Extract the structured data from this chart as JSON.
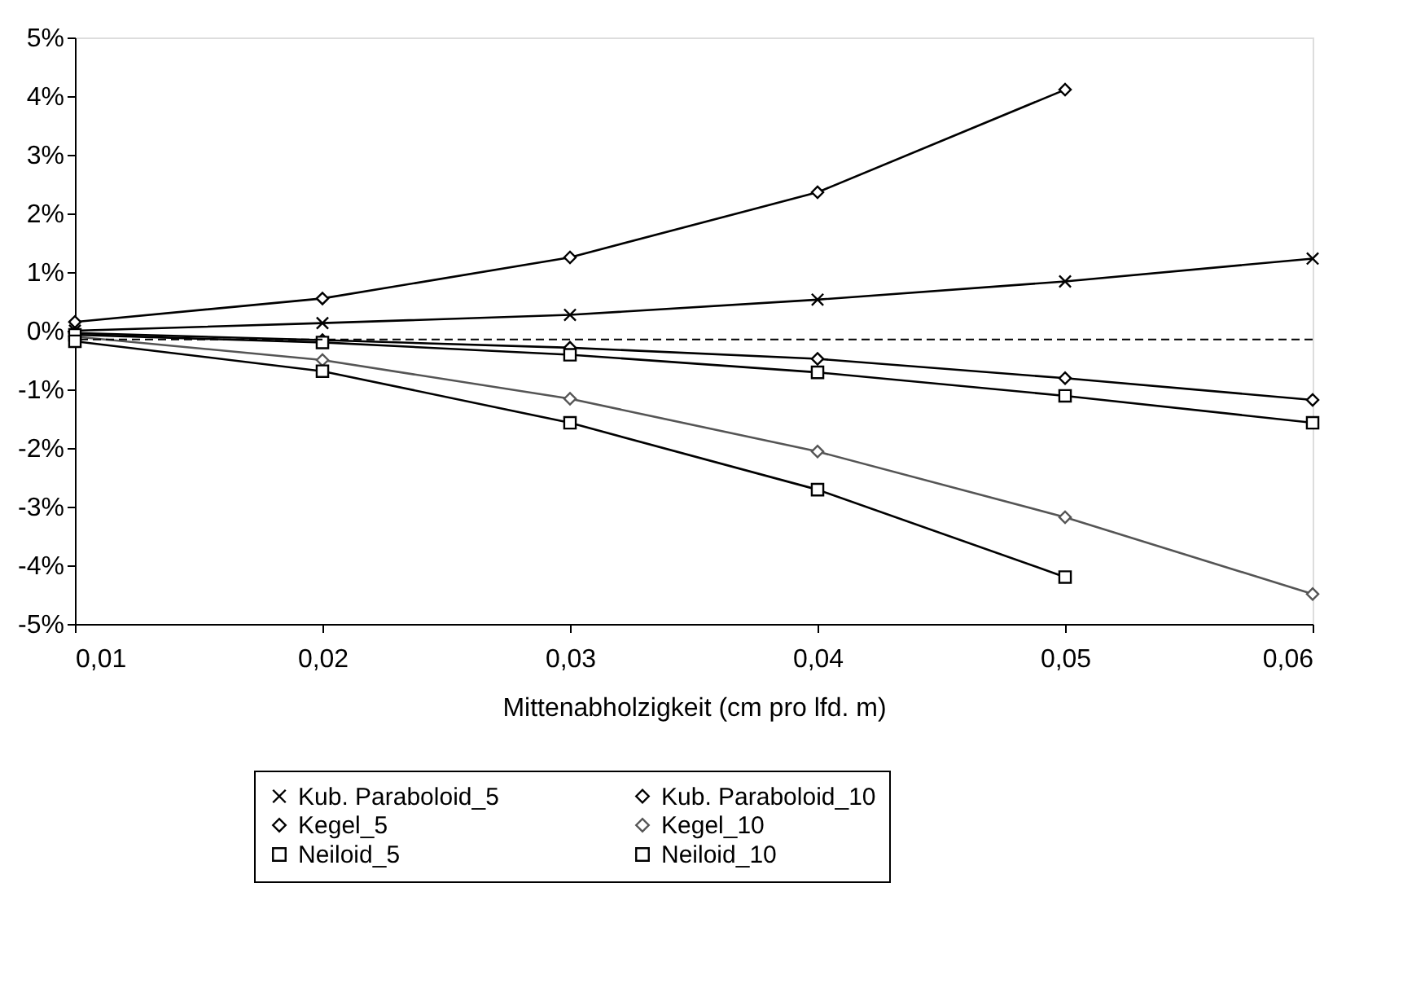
{
  "chart_data": {
    "type": "line",
    "xlabel": "Mittenabholzigkeit (cm pro lfd. m)",
    "x": [
      0.01,
      0.02,
      0.03,
      0.04,
      0.05,
      0.06
    ],
    "xlim": [
      0.01,
      0.06
    ],
    "xticks": [
      {
        "value": 0.01,
        "label": "0,01"
      },
      {
        "value": 0.02,
        "label": "0,02"
      },
      {
        "value": 0.03,
        "label": "0,03"
      },
      {
        "value": 0.04,
        "label": "0,04"
      },
      {
        "value": 0.05,
        "label": "0,05"
      },
      {
        "value": 0.06,
        "label": "0,06"
      }
    ],
    "ylim": [
      -5,
      5
    ],
    "yticks": [
      {
        "value": 5,
        "label": "5%"
      },
      {
        "value": 4,
        "label": "4%"
      },
      {
        "value": 3,
        "label": "3%"
      },
      {
        "value": 2,
        "label": "2%"
      },
      {
        "value": 1,
        "label": "1%"
      },
      {
        "value": 0,
        "label": "0%"
      },
      {
        "value": -1,
        "label": "-1%"
      },
      {
        "value": -2,
        "label": "-2%"
      },
      {
        "value": -3,
        "label": "-3%"
      },
      {
        "value": -4,
        "label": "-4%"
      },
      {
        "value": -5,
        "label": "-5%"
      }
    ],
    "grid": false,
    "legend": "bottom",
    "line_style": "solid",
    "ref_lines": [
      {
        "axis": "y",
        "value": -0.15,
        "color": "#000000",
        "line_style": "dashed"
      }
    ],
    "series": [
      {
        "name": "Kub. Paraboloid_5",
        "color": "#000000",
        "marker": "cross",
        "values": [
          0.0,
          0.13,
          0.27,
          0.53,
          0.84,
          1.23
        ]
      },
      {
        "name": "Kub. Paraboloid_10",
        "color": "#000000",
        "marker": "diamond",
        "values": [
          0.15,
          0.55,
          1.25,
          2.36,
          4.11,
          null
        ]
      },
      {
        "name": "Kegel_5",
        "color": "#000000",
        "marker": "diamond",
        "values": [
          -0.04,
          -0.16,
          -0.29,
          -0.48,
          -0.81,
          -1.18
        ]
      },
      {
        "name": "Kegel_10",
        "color": "#555555",
        "marker": "diamond",
        "values": [
          -0.1,
          -0.5,
          -1.16,
          -2.06,
          -3.18,
          -4.49
        ]
      },
      {
        "name": "Neiloid_5",
        "color": "#000000",
        "marker": "square",
        "values": [
          -0.07,
          -0.2,
          -0.41,
          -0.71,
          -1.11,
          -1.57
        ]
      },
      {
        "name": "Neiloid_10",
        "color": "#000000",
        "marker": "square",
        "values": [
          -0.18,
          -0.69,
          -1.57,
          -2.71,
          -4.2,
          null
        ]
      }
    ]
  }
}
